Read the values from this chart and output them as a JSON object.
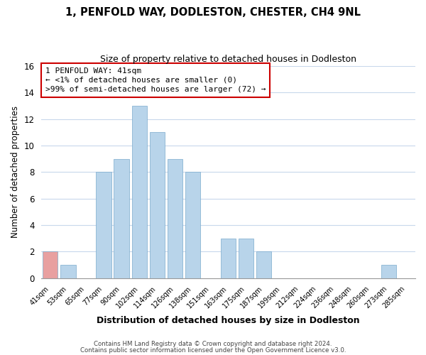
{
  "title": "1, PENFOLD WAY, DODLESTON, CHESTER, CH4 9NL",
  "subtitle": "Size of property relative to detached houses in Dodleston",
  "xlabel": "Distribution of detached houses by size in Dodleston",
  "ylabel": "Number of detached properties",
  "bin_labels": [
    "41sqm",
    "53sqm",
    "65sqm",
    "77sqm",
    "90sqm",
    "102sqm",
    "114sqm",
    "126sqm",
    "138sqm",
    "151sqm",
    "163sqm",
    "175sqm",
    "187sqm",
    "199sqm",
    "212sqm",
    "224sqm",
    "236sqm",
    "248sqm",
    "260sqm",
    "273sqm",
    "285sqm"
  ],
  "bar_values": [
    2,
    1,
    0,
    8,
    9,
    13,
    11,
    9,
    8,
    0,
    3,
    3,
    2,
    0,
    0,
    0,
    0,
    0,
    0,
    1,
    0
  ],
  "bar_color": "#b8d4ea",
  "highlight_bar_index": 0,
  "highlight_color": "#e8a0a0",
  "ylim": [
    0,
    16
  ],
  "yticks": [
    0,
    2,
    4,
    6,
    8,
    10,
    12,
    14,
    16
  ],
  "annotation_title": "1 PENFOLD WAY: 41sqm",
  "annotation_line1": "← <1% of detached houses are smaller (0)",
  "annotation_line2": ">99% of semi-detached houses are larger (72) →",
  "footer_line1": "Contains HM Land Registry data © Crown copyright and database right 2024.",
  "footer_line2": "Contains public sector information licensed under the Open Government Licence v3.0.",
  "background_color": "#ffffff",
  "grid_color": "#c8d8ec",
  "annotation_box_color": "#ffffff",
  "annotation_box_edge_color": "#cc0000"
}
